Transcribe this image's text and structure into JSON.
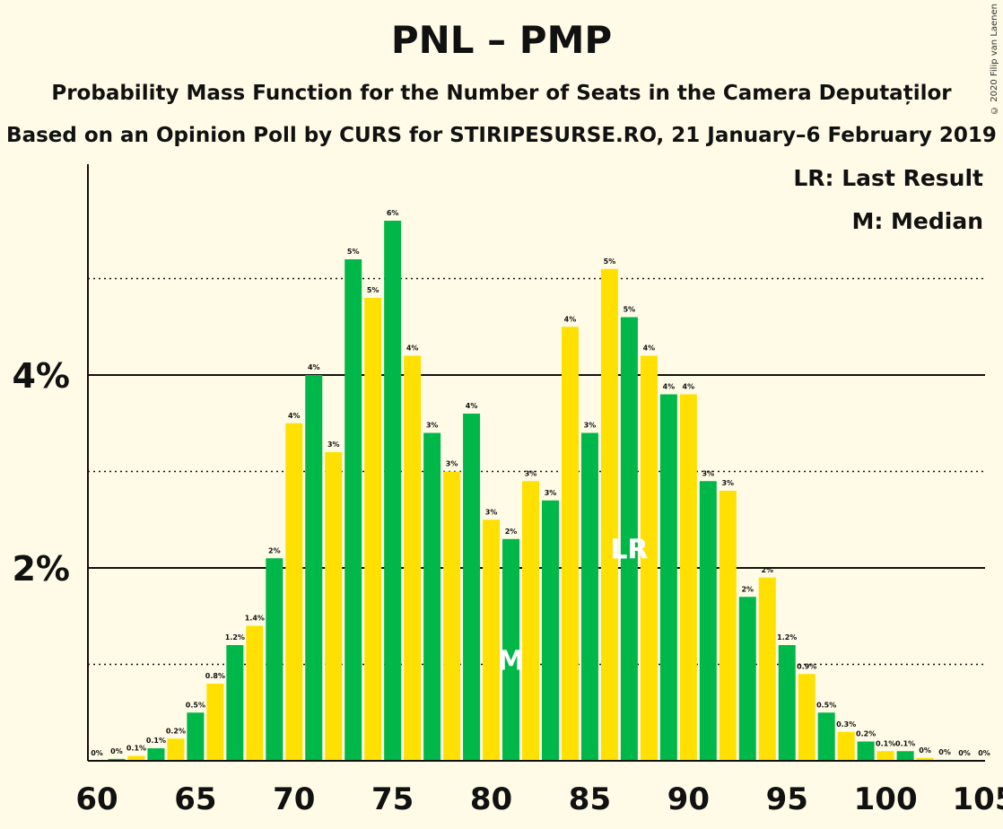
{
  "header": {
    "title": "PNL – PMP",
    "subtitle": "Probability Mass Function for the Number of Seats in the Camera Deputaților",
    "source": "Based on an Opinion Poll by CURS for STIRIPESURSE.RO, 21 January–6 February 2019",
    "copyright": "© 2020 Filip van Laenen"
  },
  "legend": {
    "last_result": "LR: Last Result",
    "median": "M: Median"
  },
  "colors": {
    "green": "#00b84a",
    "yellow": "#ffe000",
    "background": "#fffbe6"
  },
  "chart_data": {
    "type": "bar",
    "x": [
      60,
      61,
      62,
      63,
      64,
      65,
      66,
      67,
      68,
      69,
      70,
      71,
      72,
      73,
      74,
      75,
      76,
      77,
      78,
      79,
      80,
      81,
      82,
      83,
      84,
      85,
      86,
      87,
      88,
      89,
      90,
      91,
      92,
      93,
      94,
      95,
      96,
      97,
      98,
      99,
      100,
      101,
      102,
      103,
      104,
      105
    ],
    "values": [
      0,
      0.02,
      0.05,
      0.13,
      0.23,
      0.5,
      0.8,
      1.2,
      1.4,
      2.1,
      3.5,
      4.0,
      3.2,
      5.2,
      4.8,
      5.6,
      4.2,
      3.4,
      3.0,
      3.6,
      2.5,
      2.3,
      2.9,
      2.7,
      4.5,
      3.4,
      5.1,
      4.6,
      4.2,
      3.8,
      3.8,
      2.9,
      2.8,
      1.7,
      1.9,
      1.2,
      0.9,
      0.5,
      0.3,
      0.2,
      0.1,
      0.1,
      0.03,
      0.01,
      0,
      0
    ],
    "labels": [
      "0%",
      "0%",
      "0.1%",
      "0.1%",
      "0.2%",
      "0.5%",
      "0.8%",
      "1.2%",
      "1.4%",
      "2%",
      "4%",
      "4%",
      "3%",
      "5%",
      "5%",
      "6%",
      "4%",
      "3%",
      "3%",
      "4%",
      "3%",
      "2%",
      "3%",
      "3%",
      "4%",
      "3%",
      "5%",
      "5%",
      "4%",
      "4%",
      "4%",
      "3%",
      "3%",
      "2%",
      "2%",
      "1.2%",
      "0.9%",
      "0.5%",
      "0.3%",
      "0.2%",
      "0.1%",
      "0.1%",
      "0%",
      "0%",
      "0%",
      "0%"
    ],
    "x_ticks": [
      60,
      65,
      70,
      75,
      80,
      85,
      90,
      95,
      100,
      105
    ],
    "x_tick_labels": [
      "60",
      "65",
      "70",
      "75",
      "80",
      "85",
      "90",
      "95",
      "100",
      "105"
    ],
    "y_ticks": [
      2,
      4
    ],
    "y_tick_labels": [
      "2%",
      "4%"
    ],
    "y_dotted_lines": [
      1,
      3,
      5
    ],
    "ylim": [
      0,
      6.1
    ],
    "xlim": [
      60,
      105
    ],
    "median_seat": 81,
    "median_marker": "M",
    "last_result_seat": 87,
    "last_result_marker": "LR"
  }
}
